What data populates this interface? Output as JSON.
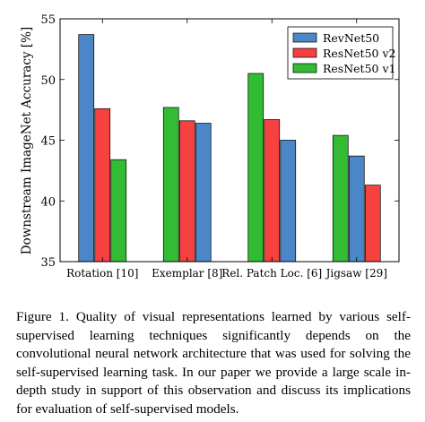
{
  "chart_data": {
    "type": "bar",
    "title": "",
    "xlabel": "",
    "ylabel": "Downstream ImageNet Accuracy [%]",
    "ylim": [
      35,
      55
    ],
    "yticks": [
      35,
      40,
      45,
      50,
      55
    ],
    "categories": [
      "Rotation [10]",
      "Exemplar [8]",
      "Rel. Patch Loc. [6]",
      "Jigsaw [29]"
    ],
    "series": [
      {
        "name": "RevNet50",
        "color": "#4a86c8",
        "values": [
          53.7,
          46.4,
          45.0,
          43.7
        ]
      },
      {
        "name": "ResNet50 v2",
        "color": "#f5413f",
        "values": [
          47.6,
          46.6,
          46.7,
          41.3
        ]
      },
      {
        "name": "ResNet50 v1",
        "color": "#33bb33",
        "values": [
          43.4,
          47.7,
          50.5,
          45.4
        ]
      }
    ],
    "bar_order": [
      [
        "RevNet50",
        "ResNet50 v2",
        "ResNet50 v1"
      ],
      [
        "ResNet50 v1",
        "ResNet50 v2",
        "RevNet50"
      ],
      [
        "ResNet50 v1",
        "ResNet50 v2",
        "RevNet50"
      ],
      [
        "ResNet50 v1",
        "RevNet50",
        "ResNet50 v2"
      ]
    ],
    "legend_placement": "top-right",
    "grid": false
  },
  "caption": "Figure 1.   Quality of visual representations learned by various self-supervised learning techniques significantly depends on the convolutional neural network architecture that was used for solving the self-supervised learning task. In our paper we provide a large scale in-depth study in support of this observation and discuss its implications for evaluation of self-supervised models."
}
